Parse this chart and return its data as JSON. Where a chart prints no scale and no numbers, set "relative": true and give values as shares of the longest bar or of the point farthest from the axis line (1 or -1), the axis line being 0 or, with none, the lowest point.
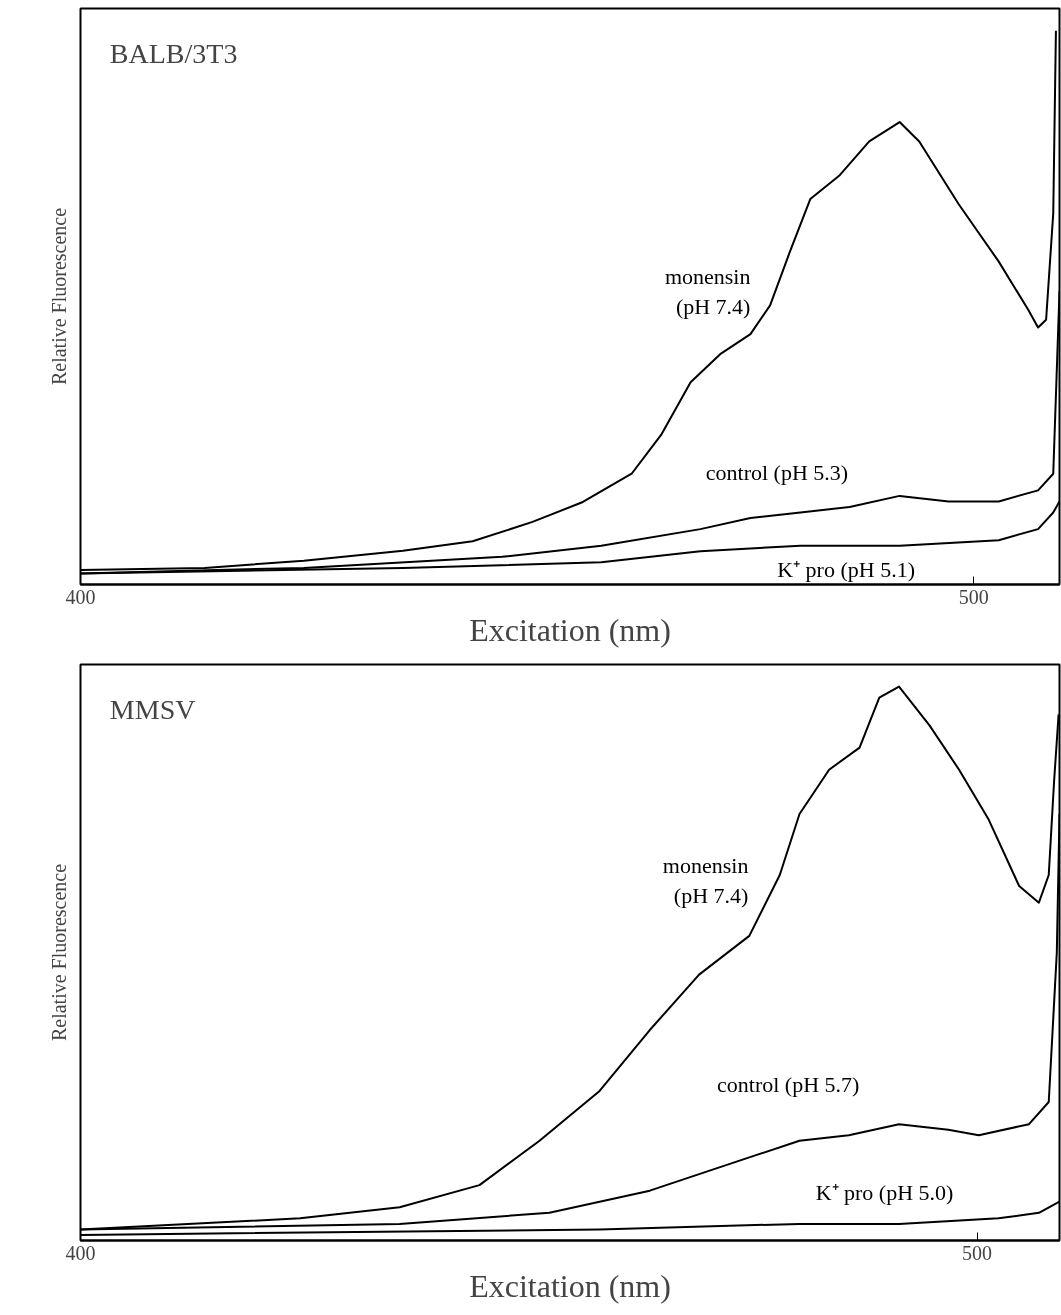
{
  "chart_data": [
    {
      "type": "line",
      "title": "BALB/3T3",
      "xlabel": "Excitation (nm)",
      "ylabel": "Relative Fluorescence",
      "relative": true,
      "xlim": [
        400,
        509.6
      ],
      "xticks": [
        400,
        500
      ],
      "tick_labels": "x",
      "grid": false,
      "legend": false,
      "series": [
        {
          "name": "monensin\n(pH 7.4)",
          "color": "#000000",
          "x": [
            400,
            413.9,
            425,
            436.1,
            443.9,
            450.6,
            456.1,
            461.7,
            465,
            468.3,
            471.7,
            475,
            477.2,
            479.4,
            481.7,
            485,
            488.3,
            491.7,
            493.9,
            498.3,
            502.8,
            506.1,
            507.2,
            508.1,
            508.9,
            509.2
          ],
          "values": [
            0.026,
            0.03,
            0.043,
            0.061,
            0.078,
            0.113,
            0.148,
            0.2,
            0.27,
            0.365,
            0.417,
            0.452,
            0.504,
            0.6,
            0.696,
            0.739,
            0.8,
            0.835,
            0.8,
            0.687,
            0.583,
            0.496,
            0.464,
            0.478,
            0.67,
            1
          ]
        },
        {
          "name": "control (pH 5.3)",
          "color": "#000000",
          "x": [
            400,
            425,
            447.2,
            458.3,
            469.4,
            475,
            480.6,
            486.1,
            491.7,
            497.2,
            502.8,
            507.2,
            508.9,
            509.6
          ],
          "values": [
            0.02,
            0.03,
            0.05,
            0.07,
            0.1,
            0.12,
            0.13,
            0.14,
            0.16,
            0.15,
            0.15,
            0.17,
            0.2,
            0.53
          ]
        },
        {
          "name": "K⁺ pro (pH 5.1)",
          "color": "#000000",
          "x": [
            400,
            436.1,
            458.3,
            469.4,
            480.6,
            491.7,
            502.8,
            507.2,
            508.9,
            509.6
          ],
          "values": [
            0.02,
            0.03,
            0.04,
            0.06,
            0.07,
            0.07,
            0.08,
            0.1,
            0.13,
            0.15
          ]
        }
      ]
    },
    {
      "type": "line",
      "title": "MMSV",
      "xlabel": "Excitation (nm)",
      "ylabel": "Relative Fluorescence",
      "relative": true,
      "xlim": [
        400,
        509.2
      ],
      "xticks": [
        400,
        500
      ],
      "tick_labels": "x",
      "grid": false,
      "legend": false,
      "series": [
        {
          "name": "monensin\n(pH 7.4)",
          "color": "#000000",
          "x": [
            400,
            424.5,
            435.6,
            444.5,
            451.2,
            457.9,
            463.5,
            469,
            474.6,
            478,
            480.2,
            483.5,
            486.9,
            489.1,
            491.3,
            494.7,
            498,
            501.3,
            504.7,
            506.9,
            508,
            508.6,
            509.1
          ],
          "values": [
            0.02,
            0.04,
            0.06,
            0.1,
            0.18,
            0.27,
            0.38,
            0.48,
            0.55,
            0.66,
            0.77,
            0.85,
            0.89,
            0.98,
            1,
            0.93,
            0.85,
            0.76,
            0.64,
            0.61,
            0.66,
            0.83,
            0.95
          ]
        },
        {
          "name": "control (pH 5.7)",
          "color": "#000000",
          "x": [
            400,
            435.6,
            452.3,
            463.5,
            474.6,
            480.2,
            485.7,
            491.3,
            496.8,
            500.2,
            505.8,
            508,
            508.9,
            509.2
          ],
          "values": [
            0.02,
            0.03,
            0.05,
            0.09,
            0.15,
            0.18,
            0.19,
            0.21,
            0.2,
            0.19,
            0.21,
            0.25,
            0.52,
            0.77
          ]
        },
        {
          "name": "K⁺ pro (pH 5.0)",
          "color": "#000000",
          "x": [
            400,
            457.9,
            480.2,
            491.3,
            502.4,
            506.9,
            509.2
          ],
          "values": [
            0.01,
            0.02,
            0.03,
            0.03,
            0.04,
            0.05,
            0.07
          ]
        }
      ]
    }
  ]
}
